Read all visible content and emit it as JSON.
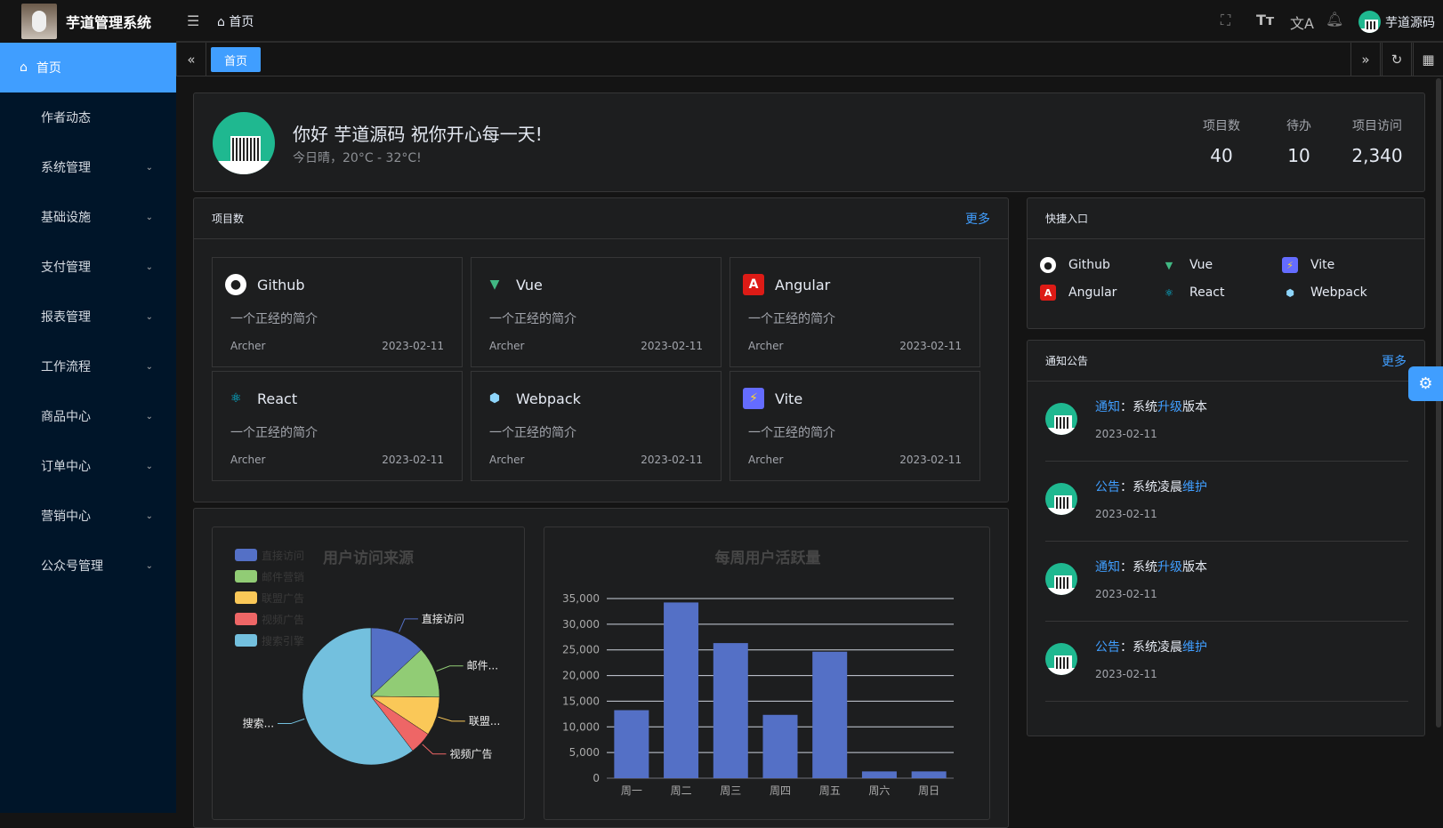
{
  "app": {
    "title": "芋道管理系统",
    "breadcrumb": "首页",
    "user": "芋道源码"
  },
  "header_icons": [
    "fullscreen-icon",
    "font-size-icon",
    "translate-icon",
    "bell-icon"
  ],
  "sidebar": {
    "items": [
      {
        "label": "首页",
        "active": true
      },
      {
        "label": "作者动态"
      },
      {
        "label": "系统管理",
        "sub": true
      },
      {
        "label": "基础设施",
        "sub": true
      },
      {
        "label": "支付管理",
        "sub": true
      },
      {
        "label": "报表管理",
        "sub": true
      },
      {
        "label": "工作流程",
        "sub": true
      },
      {
        "label": "商品中心",
        "sub": true
      },
      {
        "label": "订单中心",
        "sub": true
      },
      {
        "label": "营销中心",
        "sub": true
      },
      {
        "label": "公众号管理",
        "sub": true
      }
    ]
  },
  "tabs": [
    {
      "label": "首页"
    }
  ],
  "welcome": {
    "greeting": "你好 芋道源码 祝你开心每一天!",
    "weather": "今日晴，20°C - 32°C!",
    "stats": [
      {
        "label": "项目数",
        "value": "40"
      },
      {
        "label": "待办",
        "value": "10"
      },
      {
        "label": "项目访问",
        "value": "2,340"
      }
    ]
  },
  "projects": {
    "title": "项目数",
    "more": "更多",
    "items": [
      {
        "name": "Github",
        "icon": "github",
        "desc": "一个正经的简介",
        "author": "Archer",
        "date": "2023-02-11"
      },
      {
        "name": "Vue",
        "icon": "vue",
        "desc": "一个正经的简介",
        "author": "Archer",
        "date": "2023-02-11"
      },
      {
        "name": "Angular",
        "icon": "angular",
        "desc": "一个正经的简介",
        "author": "Archer",
        "date": "2023-02-11"
      },
      {
        "name": "React",
        "icon": "react",
        "desc": "一个正经的简介",
        "author": "Archer",
        "date": "2023-02-11"
      },
      {
        "name": "Webpack",
        "icon": "webpack",
        "desc": "一个正经的简介",
        "author": "Archer",
        "date": "2023-02-11"
      },
      {
        "name": "Vite",
        "icon": "vite",
        "desc": "一个正经的简介",
        "author": "Archer",
        "date": "2023-02-11"
      }
    ]
  },
  "quick": {
    "title": "快捷入口",
    "items": [
      {
        "name": "Github",
        "icon": "github"
      },
      {
        "name": "Vue",
        "icon": "vue"
      },
      {
        "name": "Vite",
        "icon": "vite"
      },
      {
        "name": "Angular",
        "icon": "angular"
      },
      {
        "name": "React",
        "icon": "react"
      },
      {
        "name": "Webpack",
        "icon": "webpack"
      }
    ]
  },
  "notices": {
    "title": "通知公告",
    "more": "更多",
    "items": [
      {
        "type": "通知",
        "sep": "：",
        "a": "系统",
        "b": "升级",
        "c": "版本",
        "date": "2023-02-11"
      },
      {
        "type": "公告",
        "sep": "：",
        "a": "系统凌晨",
        "b": "维护",
        "c": "",
        "date": "2023-02-11"
      },
      {
        "type": "通知",
        "sep": "：",
        "a": "系统",
        "b": "升级",
        "c": "版本",
        "date": "2023-02-11"
      },
      {
        "type": "公告",
        "sep": "：",
        "a": "系统凌晨",
        "b": "维护",
        "c": "",
        "date": "2023-02-11"
      }
    ]
  },
  "colors": {
    "accent": "#409eff",
    "sidebar": "#001529"
  },
  "chart_data": [
    {
      "type": "pie",
      "title": "用户访问来源",
      "legend": "top-left",
      "categories": [
        "直接访问",
        "邮件营销",
        "联盟广告",
        "视频广告",
        "搜索引擎"
      ],
      "values": [
        335,
        310,
        234,
        135,
        1548
      ],
      "colors": [
        "#5470c6",
        "#91cc75",
        "#fac858",
        "#ee6666",
        "#73c0de"
      ],
      "labels": [
        "直接访问",
        "邮件...",
        "联盟...",
        "视频广告",
        "搜索..."
      ]
    },
    {
      "type": "bar",
      "title": "每周用户活跃量",
      "categories": [
        "周一",
        "周二",
        "周三",
        "周四",
        "周五",
        "周六",
        "周日"
      ],
      "values": [
        13253,
        34235,
        26321,
        12340,
        24643,
        1322,
        1324
      ],
      "ylim": [
        0,
        35000
      ],
      "yticks": [
        "0",
        "5,000",
        "10,000",
        "15,000",
        "20,000",
        "25,000",
        "30,000",
        "35,000"
      ],
      "color": "#5470c6",
      "grid": true
    }
  ]
}
